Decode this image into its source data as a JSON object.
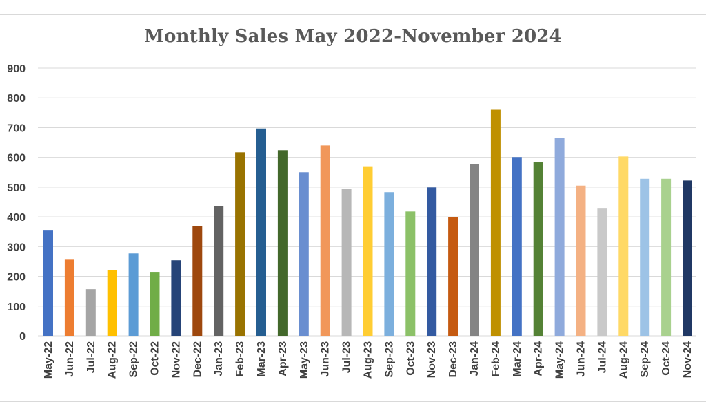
{
  "chart_data": {
    "type": "bar",
    "title": "Monthly Sales May 2022-November 2024",
    "xlabel": "",
    "ylabel": "",
    "ylim": [
      0,
      900
    ],
    "yticks": [
      0,
      100,
      200,
      300,
      400,
      500,
      600,
      700,
      800,
      900
    ],
    "grid": true,
    "legend": "none",
    "categories": [
      "May-22",
      "Jun-22",
      "Jul-22",
      "Aug-22",
      "Sep-22",
      "Oct-22",
      "Nov-22",
      "Dec-22",
      "Jan-23",
      "Feb-23",
      "Mar-23",
      "Apr-23",
      "May-23",
      "Jun-23",
      "Jul-23",
      "Aug-23",
      "Sep-23",
      "Oct-23",
      "Nov-23",
      "Dec-23",
      "Jan-24",
      "Feb-24",
      "Mar-24",
      "Apr-24",
      "May-24",
      "Jun-24",
      "Jul-24",
      "Aug-24",
      "Sep-24",
      "Oct-24",
      "Nov-24"
    ],
    "values": [
      356,
      256,
      157,
      222,
      277,
      215,
      254,
      370,
      436,
      617,
      697,
      624,
      550,
      640,
      495,
      570,
      483,
      418,
      499,
      398,
      578,
      760,
      601,
      583,
      664,
      505,
      430,
      603,
      528,
      528,
      522
    ],
    "colors": [
      "#4472c4",
      "#ed7d31",
      "#a5a5a5",
      "#ffc000",
      "#5b9bd5",
      "#70ad47",
      "#264478",
      "#9e480e",
      "#636363",
      "#997300",
      "#255e91",
      "#43682b",
      "#698ed0",
      "#f1975a",
      "#b7b7b7",
      "#ffcd33",
      "#7cafdd",
      "#8cc168",
      "#335aa1",
      "#c55a11",
      "#848484",
      "#bf9000",
      "#4472c4",
      "#548235",
      "#8faadc",
      "#f4b183",
      "#c9c9c9",
      "#ffd966",
      "#9dc3e6",
      "#a9d18e",
      "#203864"
    ]
  }
}
